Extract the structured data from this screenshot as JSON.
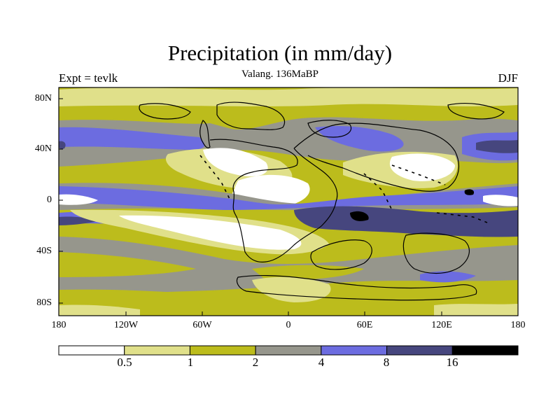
{
  "title": "Precipitation (in mm/day)",
  "subtitle": "Valang. 136MaBP",
  "left_label": "Expt = tevlk",
  "right_label": "DJF",
  "lat_labels": [
    "80N",
    "40N",
    "0",
    "40S",
    "80S"
  ],
  "lon_labels": [
    "180",
    "120W",
    "60W",
    "0",
    "60E",
    "120E",
    "180"
  ],
  "legend": {
    "levels": [
      "0.5",
      "1",
      "2",
      "4",
      "8",
      "16"
    ],
    "colors": [
      "#ffffff",
      "#e0e08a",
      "#bcbc1c",
      "#96968c",
      "#6c6ce0",
      "#46467e",
      "#000000"
    ]
  }
}
